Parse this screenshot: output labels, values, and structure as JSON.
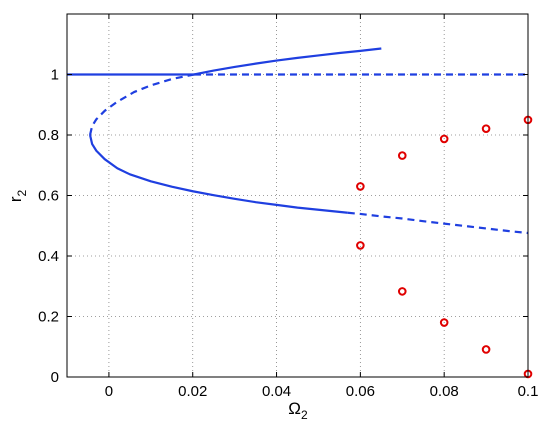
{
  "chart_data": {
    "type": "line",
    "title": "",
    "xlabel": {
      "base": "Ω",
      "sub": "2"
    },
    "ylabel": {
      "base": "r",
      "sub": "2"
    },
    "xlim": [
      -0.01,
      0.1
    ],
    "ylim": [
      0,
      1.2
    ],
    "xticks": [
      0,
      0.02,
      0.04,
      0.06,
      0.08,
      0.1
    ],
    "xtick_labels": [
      "0",
      "0.02",
      "0.04",
      "0.06",
      "0.08",
      "0.1"
    ],
    "yticks": [
      0,
      0.2,
      0.4,
      0.6,
      0.8,
      1.0
    ],
    "ytick_labels": [
      "0",
      "0.2",
      "0.4",
      "0.6",
      "0.8",
      "1"
    ],
    "grid": true,
    "grid_style": "dotted",
    "colors": {
      "curve": "#1f3fe0",
      "points": "#e00000",
      "axis": "#000000",
      "grid": "#808080"
    },
    "series": [
      {
        "style": "solid",
        "color": "#1f3fe0",
        "points": [
          [
            -0.01,
            1.0
          ],
          [
            0.0203,
            1.0
          ]
        ]
      },
      {
        "style": "dashed",
        "color": "#1f3fe0",
        "points": [
          [
            0.0203,
            1.0
          ],
          [
            0.1,
            1.0
          ]
        ]
      },
      {
        "style": "solid",
        "color": "#1f3fe0",
        "points": [
          [
            0.0203,
            1.0
          ],
          [
            0.025,
            1.013
          ],
          [
            0.03,
            1.025
          ],
          [
            0.035,
            1.036
          ],
          [
            0.04,
            1.046
          ],
          [
            0.045,
            1.055
          ],
          [
            0.05,
            1.063
          ],
          [
            0.055,
            1.071
          ],
          [
            0.06,
            1.078
          ],
          [
            0.065,
            1.086
          ]
        ]
      },
      {
        "style": "dashed",
        "color": "#1f3fe0",
        "points": [
          [
            -0.0045,
            0.8
          ],
          [
            -0.004,
            0.83
          ],
          [
            -0.003,
            0.852
          ],
          [
            -0.001,
            0.88
          ],
          [
            0.002,
            0.91
          ],
          [
            0.006,
            0.942
          ],
          [
            0.01,
            0.964
          ],
          [
            0.015,
            0.985
          ],
          [
            0.0203,
            1.0
          ]
        ]
      },
      {
        "style": "solid",
        "color": "#1f3fe0",
        "points": [
          [
            -0.0045,
            0.8
          ],
          [
            -0.004,
            0.77
          ],
          [
            -0.003,
            0.748
          ],
          [
            -0.001,
            0.72
          ],
          [
            0.002,
            0.69
          ],
          [
            0.005,
            0.67
          ],
          [
            0.01,
            0.647
          ],
          [
            0.015,
            0.629
          ],
          [
            0.02,
            0.614
          ],
          [
            0.025,
            0.601
          ],
          [
            0.03,
            0.589
          ],
          [
            0.035,
            0.578
          ],
          [
            0.04,
            0.569
          ],
          [
            0.045,
            0.56
          ],
          [
            0.05,
            0.553
          ],
          [
            0.057,
            0.543
          ]
        ]
      },
      {
        "style": "dashed",
        "color": "#1f3fe0",
        "points": [
          [
            0.057,
            0.543
          ],
          [
            0.06,
            0.539
          ],
          [
            0.065,
            0.531
          ],
          [
            0.07,
            0.524
          ],
          [
            0.075,
            0.515
          ],
          [
            0.08,
            0.507
          ],
          [
            0.085,
            0.499
          ],
          [
            0.09,
            0.491
          ],
          [
            0.095,
            0.483
          ],
          [
            0.1,
            0.476
          ]
        ]
      },
      {
        "type": "scatter",
        "marker": "circle-open",
        "color": "#e00000",
        "points": [
          [
            0.06,
            0.63
          ],
          [
            0.06,
            0.435
          ],
          [
            0.07,
            0.732
          ],
          [
            0.07,
            0.283
          ],
          [
            0.08,
            0.787
          ],
          [
            0.08,
            0.18
          ],
          [
            0.09,
            0.821
          ],
          [
            0.09,
            0.091
          ],
          [
            0.1,
            0.85
          ],
          [
            0.1,
            0.01
          ]
        ]
      }
    ]
  }
}
